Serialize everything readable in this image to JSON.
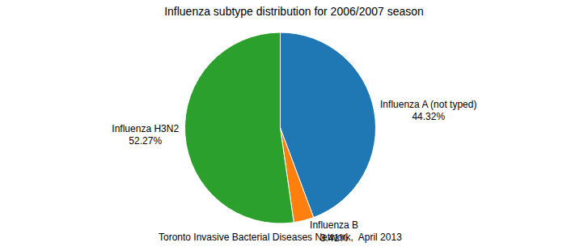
{
  "chart_data": {
    "type": "pie",
    "title": "Influenza subtype distribution for 2006/2007 season",
    "subtitle": "Toronto Invasive Bacterial Diseases Network,  April 2013",
    "categories": [
      "Influenza A (not typed)",
      "Influenza B",
      "Influenza H3N2"
    ],
    "values": [
      44.32,
      3.41,
      52.27
    ],
    "value_labels": [
      "44.32%",
      "3.41%",
      "52.27%"
    ],
    "data_labels": true
  }
}
